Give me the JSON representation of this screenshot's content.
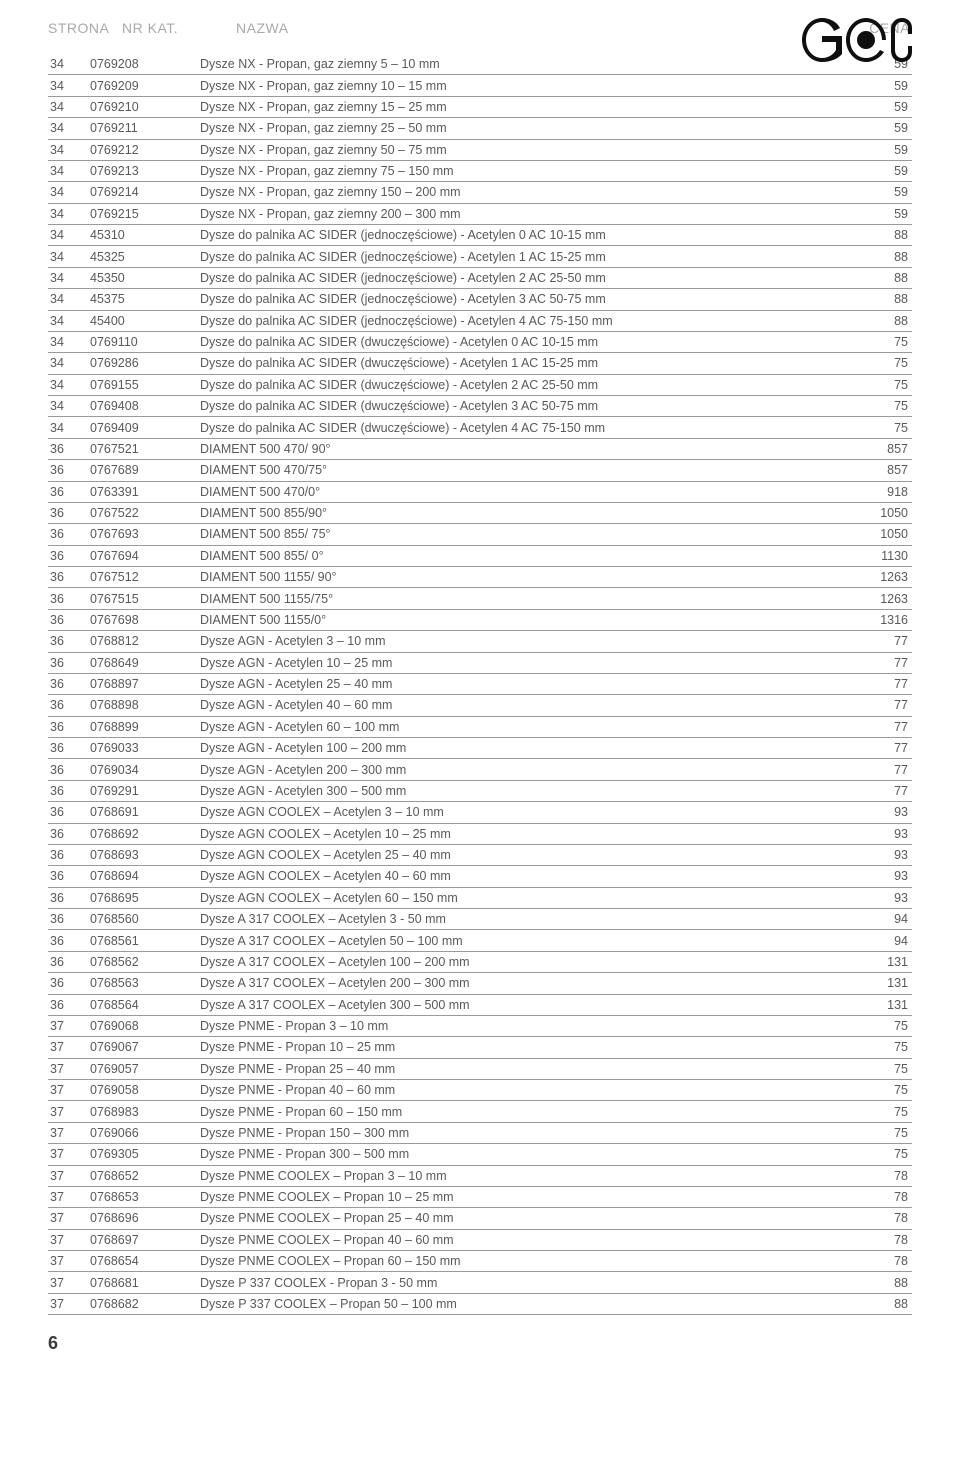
{
  "headers": {
    "strona": "STRONA",
    "nrkat": "NR KAT.",
    "nazwa": "NAZWA",
    "cena": "CENA"
  },
  "logo_color": "#0f0f0f",
  "page_number": "6",
  "rows": [
    {
      "s": "34",
      "k": "0769208",
      "n": "Dysze NX - Propan, gaz ziemny 5 – 10 mm",
      "c": "59"
    },
    {
      "s": "34",
      "k": "0769209",
      "n": "Dysze NX - Propan, gaz ziemny 10 – 15 mm",
      "c": "59"
    },
    {
      "s": "34",
      "k": "0769210",
      "n": "Dysze NX - Propan, gaz ziemny 15 – 25 mm",
      "c": "59"
    },
    {
      "s": "34",
      "k": "0769211",
      "n": "Dysze NX - Propan, gaz ziemny 25 – 50 mm",
      "c": "59"
    },
    {
      "s": "34",
      "k": "0769212",
      "n": "Dysze NX - Propan, gaz ziemny 50 – 75 mm",
      "c": "59"
    },
    {
      "s": "34",
      "k": "0769213",
      "n": "Dysze NX - Propan, gaz ziemny 75 – 150 mm",
      "c": "59"
    },
    {
      "s": "34",
      "k": "0769214",
      "n": "Dysze NX - Propan, gaz ziemny 150 – 200 mm",
      "c": "59"
    },
    {
      "s": "34",
      "k": "0769215",
      "n": "Dysze NX - Propan, gaz ziemny 200 – 300 mm",
      "c": "59"
    },
    {
      "s": "34",
      "k": "45310",
      "n": "Dysze do palnika AC SIDER (jednoczęściowe) - Acetylen 0 AC 10-15 mm",
      "c": "88"
    },
    {
      "s": "34",
      "k": "45325",
      "n": "Dysze do palnika AC SIDER (jednoczęściowe) - Acetylen 1 AC 15-25 mm",
      "c": "88"
    },
    {
      "s": "34",
      "k": "45350",
      "n": "Dysze do palnika AC SIDER (jednoczęściowe) - Acetylen 2 AC 25-50 mm",
      "c": "88"
    },
    {
      "s": "34",
      "k": "45375",
      "n": "Dysze do palnika AC SIDER (jednoczęściowe) - Acetylen 3 AC 50-75 mm",
      "c": "88"
    },
    {
      "s": "34",
      "k": "45400",
      "n": "Dysze do palnika AC SIDER (jednoczęściowe) - Acetylen 4 AC 75-150 mm",
      "c": "88"
    },
    {
      "s": "34",
      "k": "0769110",
      "n": "Dysze do palnika AC SIDER (dwuczęściowe) - Acetylen 0 AC 10-15 mm",
      "c": "75"
    },
    {
      "s": "34",
      "k": "0769286",
      "n": "Dysze do palnika AC SIDER (dwuczęściowe) - Acetylen 1 AC 15-25 mm",
      "c": "75"
    },
    {
      "s": "34",
      "k": "0769155",
      "n": "Dysze do palnika AC SIDER (dwuczęściowe) - Acetylen 2 AC 25-50 mm",
      "c": "75"
    },
    {
      "s": "34",
      "k": "0769408",
      "n": "Dysze do palnika AC SIDER (dwuczęściowe) - Acetylen 3 AC 50-75 mm",
      "c": "75"
    },
    {
      "s": "34",
      "k": "0769409",
      "n": "Dysze do palnika AC SIDER (dwuczęściowe) - Acetylen 4 AC 75-150 mm",
      "c": "75"
    },
    {
      "s": "36",
      "k": "0767521",
      "n": "DIAMENT 500 470/ 90°",
      "c": "857"
    },
    {
      "s": "36",
      "k": "0767689",
      "n": "DIAMENT 500 470/75°",
      "c": "857"
    },
    {
      "s": "36",
      "k": "0763391",
      "n": "DIAMENT 500 470/0°",
      "c": "918"
    },
    {
      "s": "36",
      "k": "0767522",
      "n": "DIAMENT 500 855/90°",
      "c": "1050"
    },
    {
      "s": "36",
      "k": "0767693",
      "n": "DIAMENT 500 855/ 75°",
      "c": "1050"
    },
    {
      "s": "36",
      "k": "0767694",
      "n": "DIAMENT 500 855/ 0°",
      "c": "1130"
    },
    {
      "s": "36",
      "k": "0767512",
      "n": "DIAMENT 500 1155/ 90°",
      "c": "1263"
    },
    {
      "s": "36",
      "k": "0767515",
      "n": "DIAMENT 500 1155/75°",
      "c": "1263"
    },
    {
      "s": "36",
      "k": "0767698",
      "n": "DIAMENT 500 1155/0°",
      "c": "1316"
    },
    {
      "s": "36",
      "k": "0768812",
      "n": "Dysze AGN - Acetylen 3 – 10 mm",
      "c": "77"
    },
    {
      "s": "36",
      "k": "0768649",
      "n": "Dysze AGN - Acetylen 10 – 25 mm",
      "c": "77"
    },
    {
      "s": "36",
      "k": "0768897",
      "n": "Dysze AGN - Acetylen 25 – 40 mm",
      "c": "77"
    },
    {
      "s": "36",
      "k": "0768898",
      "n": "Dysze AGN - Acetylen 40 – 60 mm",
      "c": "77"
    },
    {
      "s": "36",
      "k": "0768899",
      "n": "Dysze AGN - Acetylen 60 – 100 mm",
      "c": "77"
    },
    {
      "s": "36",
      "k": "0769033",
      "n": "Dysze AGN - Acetylen 100 – 200 mm",
      "c": "77"
    },
    {
      "s": "36",
      "k": "0769034",
      "n": "Dysze AGN - Acetylen 200 – 300 mm",
      "c": "77"
    },
    {
      "s": "36",
      "k": "0769291",
      "n": "Dysze AGN - Acetylen 300 – 500 mm",
      "c": "77"
    },
    {
      "s": "36",
      "k": "0768691",
      "n": "Dysze AGN COOLEX – Acetylen 3 – 10 mm",
      "c": "93"
    },
    {
      "s": "36",
      "k": "0768692",
      "n": "Dysze AGN COOLEX – Acetylen 10 – 25 mm",
      "c": "93"
    },
    {
      "s": "36",
      "k": "0768693",
      "n": "Dysze AGN COOLEX – Acetylen 25 – 40 mm",
      "c": "93"
    },
    {
      "s": "36",
      "k": "0768694",
      "n": "Dysze AGN COOLEX – Acetylen 40 – 60 mm",
      "c": "93"
    },
    {
      "s": "36",
      "k": "0768695",
      "n": "Dysze AGN COOLEX – Acetylen 60 – 150 mm",
      "c": "93"
    },
    {
      "s": "36",
      "k": "0768560",
      "n": "Dysze A 317 COOLEX – Acetylen 3 - 50 mm",
      "c": "94"
    },
    {
      "s": "36",
      "k": "0768561",
      "n": "Dysze A 317 COOLEX – Acetylen 50 – 100 mm",
      "c": "94"
    },
    {
      "s": "36",
      "k": "0768562",
      "n": "Dysze A 317 COOLEX – Acetylen 100 – 200 mm",
      "c": "131"
    },
    {
      "s": "36",
      "k": "0768563",
      "n": "Dysze A 317 COOLEX – Acetylen 200 – 300 mm",
      "c": "131"
    },
    {
      "s": "36",
      "k": "0768564",
      "n": "Dysze A 317 COOLEX – Acetylen 300 – 500 mm",
      "c": "131"
    },
    {
      "s": "37",
      "k": "0769068",
      "n": "Dysze PNME - Propan 3 – 10 mm",
      "c": "75"
    },
    {
      "s": "37",
      "k": "0769067",
      "n": "Dysze PNME - Propan 10 – 25 mm",
      "c": "75"
    },
    {
      "s": "37",
      "k": "0769057",
      "n": "Dysze PNME - Propan 25 – 40 mm",
      "c": "75"
    },
    {
      "s": "37",
      "k": "0769058",
      "n": "Dysze PNME - Propan 40 – 60 mm",
      "c": "75"
    },
    {
      "s": "37",
      "k": "0768983",
      "n": "Dysze PNME - Propan 60 – 150 mm",
      "c": "75"
    },
    {
      "s": "37",
      "k": "0769066",
      "n": "Dysze PNME - Propan 150 – 300 mm",
      "c": "75"
    },
    {
      "s": "37",
      "k": "0769305",
      "n": "Dysze PNME - Propan 300 – 500 mm",
      "c": "75"
    },
    {
      "s": "37",
      "k": "0768652",
      "n": "Dysze PNME COOLEX – Propan 3 – 10 mm",
      "c": "78"
    },
    {
      "s": "37",
      "k": "0768653",
      "n": "Dysze PNME COOLEX – Propan 10 – 25 mm",
      "c": "78"
    },
    {
      "s": "37",
      "k": "0768696",
      "n": "Dysze PNME COOLEX – Propan 25 – 40 mm",
      "c": "78"
    },
    {
      "s": "37",
      "k": "0768697",
      "n": "Dysze PNME COOLEX – Propan 40 – 60 mm",
      "c": "78"
    },
    {
      "s": "37",
      "k": "0768654",
      "n": "Dysze PNME COOLEX – Propan 60 – 150 mm",
      "c": "78"
    },
    {
      "s": "37",
      "k": "0768681",
      "n": "Dysze P 337 COOLEX - Propan 3 - 50 mm",
      "c": "88"
    },
    {
      "s": "37",
      "k": "0768682",
      "n": "Dysze P 337 COOLEX – Propan 50 – 100 mm",
      "c": "88"
    }
  ]
}
